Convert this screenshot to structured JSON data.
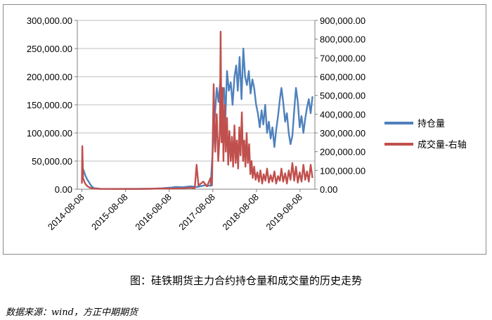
{
  "caption": "图：硅铁期货主力合约持仓量和成交量的历史走势",
  "source": "数据来源：wind，方正中期期货",
  "chart_data": {
    "type": "line",
    "x_ticks": [
      "2014-08-08",
      "2015-08-08",
      "2016-08-08",
      "2017-08-08",
      "2018-08-08",
      "2019-08-08"
    ],
    "y_left": {
      "min": 0,
      "max": 300000,
      "ticks": [
        "0.00",
        "50,000.00",
        "100,000.00",
        "150,000.00",
        "200,000.00",
        "250,000.00",
        "300,000.00"
      ]
    },
    "y_right": {
      "min": 0,
      "max": 900000,
      "ticks": [
        "0.00",
        "100,000.00",
        "200,000.00",
        "300,000.00",
        "400,000.00",
        "500,000.00",
        "600,000.00",
        "700,000.00",
        "800,000.00",
        "900,000.00"
      ]
    },
    "grid": "horizontal",
    "legend_position": "right",
    "series": [
      {
        "name": "持仓量",
        "axis": "left",
        "color": "#4f81bd",
        "points": [
          [
            "2014-08-08",
            30000
          ],
          [
            "2014-08-20",
            35000
          ],
          [
            "2014-09-05",
            25000
          ],
          [
            "2014-09-20",
            18000
          ],
          [
            "2014-10-08",
            12000
          ],
          [
            "2014-10-25",
            6000
          ],
          [
            "2014-11-15",
            2000
          ],
          [
            "2015-01-10",
            800
          ],
          [
            "2015-06-01",
            500
          ],
          [
            "2015-12-01",
            600
          ],
          [
            "2016-03-01",
            900
          ],
          [
            "2016-06-01",
            1500
          ],
          [
            "2016-09-01",
            3000
          ],
          [
            "2016-10-01",
            4000
          ],
          [
            "2016-12-01",
            3500
          ],
          [
            "2017-02-01",
            5000
          ],
          [
            "2017-04-01",
            4000
          ],
          [
            "2017-06-01",
            7000
          ],
          [
            "2017-07-20",
            6000
          ],
          [
            "2017-08-25",
            130000
          ],
          [
            "2017-09-10",
            180000
          ],
          [
            "2017-09-25",
            155000
          ],
          [
            "2017-10-10",
            195000
          ],
          [
            "2017-10-25",
            160000
          ],
          [
            "2017-11-10",
            180000
          ],
          [
            "2017-11-20",
            120000
          ],
          [
            "2017-12-05",
            210000
          ],
          [
            "2017-12-20",
            175000
          ],
          [
            "2018-01-05",
            190000
          ],
          [
            "2018-01-20",
            150000
          ],
          [
            "2018-02-05",
            200000
          ],
          [
            "2018-02-20",
            220000
          ],
          [
            "2018-03-05",
            175000
          ],
          [
            "2018-03-20",
            235000
          ],
          [
            "2018-04-05",
            160000
          ],
          [
            "2018-04-20",
            250000
          ],
          [
            "2018-05-05",
            200000
          ],
          [
            "2018-05-20",
            185000
          ],
          [
            "2018-06-05",
            210000
          ],
          [
            "2018-06-20",
            170000
          ],
          [
            "2018-07-05",
            195000
          ],
          [
            "2018-07-20",
            180000
          ],
          [
            "2018-08-05",
            150000
          ],
          [
            "2018-08-20",
            135000
          ],
          [
            "2018-09-05",
            110000
          ],
          [
            "2018-09-20",
            140000
          ],
          [
            "2018-10-05",
            115000
          ],
          [
            "2018-10-20",
            150000
          ],
          [
            "2018-11-05",
            100000
          ],
          [
            "2018-11-20",
            120000
          ],
          [
            "2018-12-05",
            90000
          ],
          [
            "2018-12-20",
            110000
          ],
          [
            "2019-01-05",
            75000
          ],
          [
            "2019-01-20",
            105000
          ],
          [
            "2019-02-05",
            130000
          ],
          [
            "2019-02-20",
            160000
          ],
          [
            "2019-03-05",
            180000
          ],
          [
            "2019-03-20",
            155000
          ],
          [
            "2019-04-05",
            120000
          ],
          [
            "2019-04-20",
            135000
          ],
          [
            "2019-05-05",
            100000
          ],
          [
            "2019-05-20",
            80000
          ],
          [
            "2019-06-05",
            95000
          ],
          [
            "2019-06-20",
            140000
          ],
          [
            "2019-07-05",
            180000
          ],
          [
            "2019-07-20",
            155000
          ],
          [
            "2019-08-05",
            110000
          ],
          [
            "2019-08-20",
            130000
          ],
          [
            "2019-09-05",
            100000
          ],
          [
            "2019-09-20",
            125000
          ],
          [
            "2019-10-05",
            145000
          ],
          [
            "2019-10-20",
            160000
          ],
          [
            "2019-11-05",
            135000
          ],
          [
            "2019-11-20",
            165000
          ]
        ]
      },
      {
        "name": "成交量-右轴",
        "axis": "right",
        "color": "#c0504d",
        "points": [
          [
            "2014-08-08",
            30000
          ],
          [
            "2014-08-12",
            230000
          ],
          [
            "2014-08-18",
            60000
          ],
          [
            "2014-08-28",
            40000
          ],
          [
            "2014-09-10",
            25000
          ],
          [
            "2014-09-25",
            15000
          ],
          [
            "2014-10-15",
            8000
          ],
          [
            "2014-11-10",
            3000
          ],
          [
            "2015-01-10",
            1500
          ],
          [
            "2015-06-01",
            1000
          ],
          [
            "2015-12-01",
            1200
          ],
          [
            "2016-03-01",
            2000
          ],
          [
            "2016-06-01",
            4000
          ],
          [
            "2016-09-01",
            3000
          ],
          [
            "2016-12-01",
            5000
          ],
          [
            "2017-02-01",
            8000
          ],
          [
            "2017-03-10",
            5000
          ],
          [
            "2017-03-25",
            130000
          ],
          [
            "2017-04-10",
            20000
          ],
          [
            "2017-05-20",
            40000
          ],
          [
            "2017-06-20",
            15000
          ],
          [
            "2017-07-20",
            60000
          ],
          [
            "2017-08-01",
            20000
          ],
          [
            "2017-08-15",
            560000
          ],
          [
            "2017-08-28",
            200000
          ],
          [
            "2017-09-10",
            400000
          ],
          [
            "2017-09-22",
            150000
          ],
          [
            "2017-10-05",
            300000
          ],
          [
            "2017-10-12",
            840000
          ],
          [
            "2017-10-20",
            250000
          ],
          [
            "2017-10-28",
            540000
          ],
          [
            "2017-11-05",
            150000
          ],
          [
            "2017-11-15",
            450000
          ],
          [
            "2017-11-25",
            200000
          ],
          [
            "2017-12-05",
            380000
          ],
          [
            "2017-12-15",
            130000
          ],
          [
            "2017-12-25",
            310000
          ],
          [
            "2018-01-05",
            150000
          ],
          [
            "2018-01-15",
            280000
          ],
          [
            "2018-01-25",
            120000
          ],
          [
            "2018-02-05",
            340000
          ],
          [
            "2018-02-15",
            140000
          ],
          [
            "2018-02-25",
            260000
          ],
          [
            "2018-03-08",
            110000
          ],
          [
            "2018-03-18",
            330000
          ],
          [
            "2018-03-28",
            180000
          ],
          [
            "2018-04-08",
            410000
          ],
          [
            "2018-04-18",
            150000
          ],
          [
            "2018-04-28",
            260000
          ],
          [
            "2018-05-08",
            120000
          ],
          [
            "2018-05-18",
            300000
          ],
          [
            "2018-05-28",
            140000
          ],
          [
            "2018-06-08",
            240000
          ],
          [
            "2018-06-18",
            80000
          ],
          [
            "2018-06-28",
            150000
          ],
          [
            "2018-07-08",
            60000
          ],
          [
            "2018-07-20",
            120000
          ],
          [
            "2018-08-01",
            50000
          ],
          [
            "2018-08-15",
            90000
          ],
          [
            "2018-08-28",
            40000
          ],
          [
            "2018-09-10",
            100000
          ],
          [
            "2018-09-25",
            30000
          ],
          [
            "2018-10-08",
            80000
          ],
          [
            "2018-10-22",
            45000
          ],
          [
            "2018-11-05",
            110000
          ],
          [
            "2018-11-20",
            35000
          ],
          [
            "2018-12-05",
            75000
          ],
          [
            "2018-12-20",
            40000
          ],
          [
            "2019-01-05",
            95000
          ],
          [
            "2019-01-20",
            30000
          ],
          [
            "2019-02-05",
            70000
          ],
          [
            "2019-02-20",
            45000
          ],
          [
            "2019-03-05",
            110000
          ],
          [
            "2019-03-20",
            40000
          ],
          [
            "2019-04-05",
            85000
          ],
          [
            "2019-04-20",
            30000
          ],
          [
            "2019-05-05",
            100000
          ],
          [
            "2019-05-20",
            50000
          ],
          [
            "2019-06-05",
            140000
          ],
          [
            "2019-06-20",
            45000
          ],
          [
            "2019-07-05",
            120000
          ],
          [
            "2019-07-20",
            35000
          ],
          [
            "2019-08-05",
            90000
          ],
          [
            "2019-08-20",
            40000
          ],
          [
            "2019-09-05",
            130000
          ],
          [
            "2019-09-20",
            50000
          ],
          [
            "2019-10-05",
            95000
          ],
          [
            "2019-10-20",
            40000
          ],
          [
            "2019-11-05",
            130000
          ],
          [
            "2019-11-20",
            60000
          ]
        ]
      }
    ]
  }
}
